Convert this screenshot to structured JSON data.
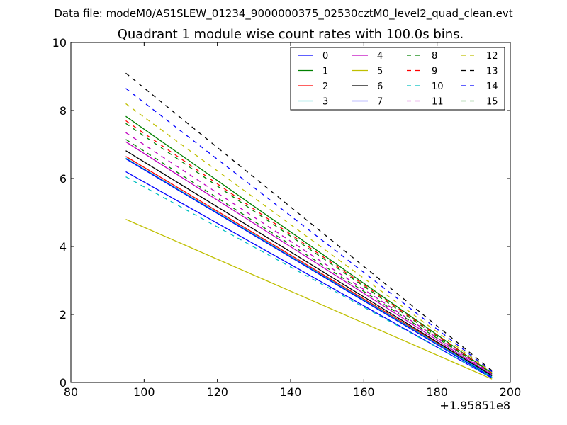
{
  "chart_data": {
    "type": "line",
    "suptitle": "Data file: modeM0/AS1SLEW_01234_9000000375_02530cztM0_level2_quad_clean.evt",
    "title": "Quadrant 1 module wise count rates with 100.0s bins.",
    "xlabel": "",
    "ylabel": "",
    "x_offset_label": "+1.95851e8",
    "xlim": [
      80,
      200
    ],
    "ylim": [
      0,
      10
    ],
    "xticks": [
      80,
      100,
      120,
      140,
      160,
      180,
      200
    ],
    "yticks": [
      0,
      2,
      4,
      6,
      8,
      10
    ],
    "xtick_labels": [
      "80",
      "100",
      "120",
      "140",
      "160",
      "180",
      "200"
    ],
    "ytick_labels": [
      "0",
      "2",
      "4",
      "6",
      "8",
      "10"
    ],
    "x": [
      95,
      195
    ],
    "legend_position": "top-right",
    "legend_columns": 4,
    "series": [
      {
        "name": "0",
        "color": "#0000ff",
        "dash": "solid",
        "values": [
          6.2,
          0.13
        ]
      },
      {
        "name": "1",
        "color": "#008000",
        "dash": "solid",
        "values": [
          7.83,
          0.27
        ]
      },
      {
        "name": "2",
        "color": "#ff0000",
        "dash": "solid",
        "values": [
          6.65,
          0.2
        ]
      },
      {
        "name": "3",
        "color": "#00bfbf",
        "dash": "solid",
        "values": [
          6.6,
          0.18
        ]
      },
      {
        "name": "4",
        "color": "#bf00bf",
        "dash": "solid",
        "values": [
          7.08,
          0.22
        ]
      },
      {
        "name": "5",
        "color": "#bfbf00",
        "dash": "solid",
        "values": [
          4.8,
          0.1
        ]
      },
      {
        "name": "6",
        "color": "#000000",
        "dash": "solid",
        "values": [
          6.82,
          0.2
        ]
      },
      {
        "name": "7",
        "color": "#0000ff",
        "dash": "solid",
        "values": [
          6.58,
          0.15
        ]
      },
      {
        "name": "8",
        "color": "#008000",
        "dash": "dashed",
        "values": [
          7.62,
          0.25
        ]
      },
      {
        "name": "9",
        "color": "#ff0000",
        "dash": "dashed",
        "values": [
          7.7,
          0.27
        ]
      },
      {
        "name": "10",
        "color": "#00bfbf",
        "dash": "dashed",
        "values": [
          6.05,
          0.15
        ]
      },
      {
        "name": "11",
        "color": "#bf00bf",
        "dash": "dashed",
        "values": [
          7.35,
          0.25
        ]
      },
      {
        "name": "12",
        "color": "#bfbf00",
        "dash": "dashed",
        "values": [
          8.2,
          0.3
        ]
      },
      {
        "name": "13",
        "color": "#000000",
        "dash": "dashed",
        "values": [
          9.1,
          0.35
        ]
      },
      {
        "name": "14",
        "color": "#0000ff",
        "dash": "dashed",
        "values": [
          8.65,
          0.32
        ]
      },
      {
        "name": "15",
        "color": "#008000",
        "dash": "dashed",
        "values": [
          7.15,
          0.27
        ]
      }
    ]
  }
}
